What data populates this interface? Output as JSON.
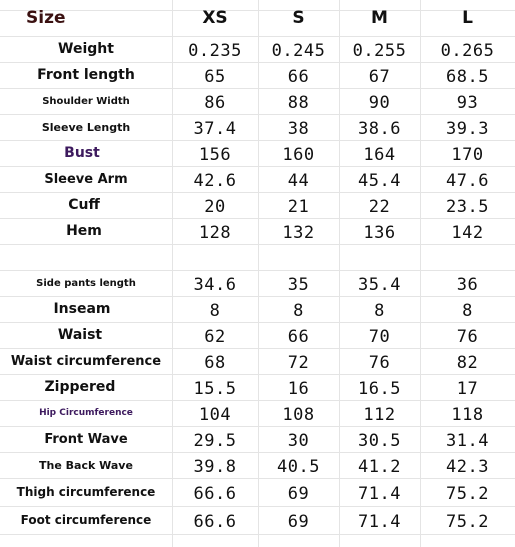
{
  "table": {
    "header": [
      "Size",
      "XS",
      "S",
      "M",
      "L"
    ],
    "rows": [
      {
        "label": "Weight",
        "values": [
          "0.235",
          "0.245",
          "0.255",
          "0.265"
        ]
      },
      {
        "label": "Front length",
        "values": [
          "65",
          "66",
          "67",
          "68.5"
        ]
      },
      {
        "label": "Shoulder Width",
        "values": [
          "86",
          "88",
          "90",
          "93"
        ]
      },
      {
        "label": "Sleeve Length",
        "values": [
          "37.4",
          "38",
          "38.6",
          "39.3"
        ]
      },
      {
        "label": "Bust",
        "values": [
          "156",
          "160",
          "164",
          "170"
        ]
      },
      {
        "label": "Sleeve Arm",
        "values": [
          "42.6",
          "44",
          "45.4",
          "47.6"
        ]
      },
      {
        "label": "Cuff",
        "values": [
          "20",
          "21",
          "22",
          "23.5"
        ]
      },
      {
        "label": "Hem",
        "values": [
          "128",
          "132",
          "136",
          "142"
        ]
      },
      {
        "label": "",
        "values": [
          "",
          "",
          "",
          ""
        ]
      },
      {
        "label": "Side pants length",
        "values": [
          "34.6",
          "35",
          "35.4",
          "36"
        ]
      },
      {
        "label": "Inseam",
        "values": [
          "8",
          "8",
          "8",
          "8"
        ]
      },
      {
        "label": "Waist",
        "values": [
          "62",
          "66",
          "70",
          "76"
        ]
      },
      {
        "label": "Waist circumference",
        "values": [
          "68",
          "72",
          "76",
          "82"
        ]
      },
      {
        "label": "Zippered",
        "values": [
          "15.5",
          "16",
          "16.5",
          "17"
        ]
      },
      {
        "label": "Hip Circumference",
        "values": [
          "104",
          "108",
          "112",
          "118"
        ]
      },
      {
        "label": "Front Wave",
        "values": [
          "29.5",
          "30",
          "30.5",
          "31.4"
        ]
      },
      {
        "label": "The Back Wave",
        "values": [
          "39.8",
          "40.5",
          "41.2",
          "42.3"
        ]
      },
      {
        "label": "Thigh circumference",
        "values": [
          "66.6",
          "69",
          "71.4",
          "75.2"
        ]
      },
      {
        "label": "Foot circumference",
        "values": [
          "66.6",
          "69",
          "71.4",
          "75.2"
        ]
      }
    ]
  },
  "colors": {
    "size_header": "#3a1010",
    "bust_label": "#3d1a5e",
    "hip_label": "#3d1a5e",
    "default_text": "#111111",
    "grid": "#e4e4e4"
  }
}
